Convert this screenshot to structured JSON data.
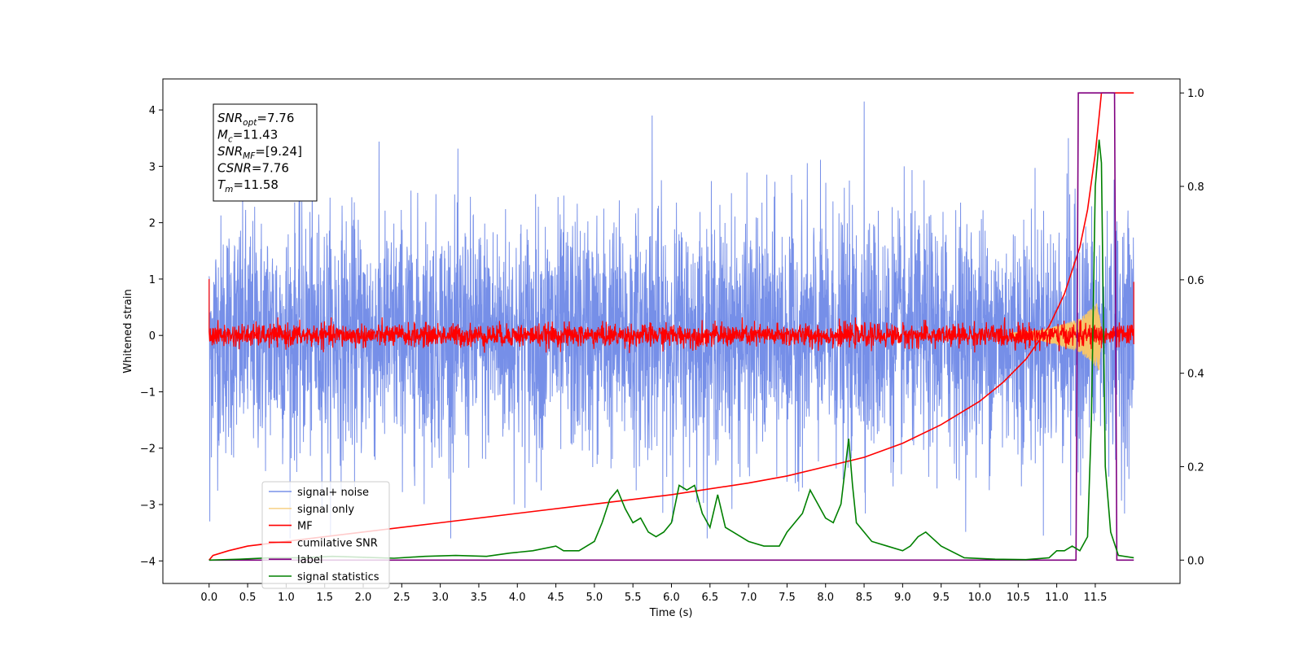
{
  "chart_data": {
    "type": "line",
    "xlabel": "Time (s)",
    "ylabel": "Whitened strain",
    "xlim": [
      -0.6,
      12.6
    ],
    "ylim": [
      -4.4,
      4.55
    ],
    "ylim_right": [
      -0.05,
      1.03
    ],
    "x_ticks": [
      0.0,
      0.5,
      1.0,
      1.5,
      2.0,
      2.5,
      3.0,
      3.5,
      4.0,
      4.5,
      5.0,
      5.5,
      6.0,
      6.5,
      7.0,
      7.5,
      8.0,
      8.5,
      9.0,
      9.5,
      10.0,
      10.5,
      11.0,
      11.5
    ],
    "x_tick_labels": [
      "0.0",
      "0.5",
      "1.0",
      "1.5",
      "2.0",
      "2.5",
      "3.0",
      "3.5",
      "4.0",
      "4.5",
      "5.0",
      "5.5",
      "6.0",
      "6.5",
      "7.0",
      "7.5",
      "8.0",
      "8.5",
      "9.0",
      "9.5",
      "10.0",
      "10.5",
      "11.0",
      "11.5"
    ],
    "y_ticks": [
      4,
      3,
      2,
      1,
      0,
      -1,
      -2,
      -3,
      -4
    ],
    "y_tick_labels": [
      "4",
      "3",
      "2",
      "1",
      "0",
      "−1",
      "−2",
      "−3",
      "−4"
    ],
    "y_ticks_right": [
      1.0,
      0.8,
      0.6,
      0.4,
      0.2,
      0.0
    ],
    "y_tick_labels_right": [
      "1.0",
      "0.8",
      "0.6",
      "0.4",
      "0.2",
      "0.0"
    ],
    "grid": false,
    "legend_position": "lower-left",
    "series": [
      {
        "name": "signal+ noise",
        "color": "#6a86e6",
        "axis": "left",
        "kind": "noise",
        "t_range": [
          0.0,
          12.0
        ],
        "amplitude_std": 1.05,
        "extremes": [
          [
            0.0,
            1.05
          ],
          [
            0.01,
            -3.3
          ],
          [
            5.75,
            3.9
          ],
          [
            8.5,
            4.15
          ],
          [
            11.15,
            3.5
          ],
          [
            11.18,
            -3.55
          ]
        ]
      },
      {
        "name": "signal only",
        "color": "#f5c56a",
        "axis": "left",
        "kind": "chirp",
        "t_range": [
          10.4,
          11.58
        ],
        "envelope": [
          [
            10.4,
            0.05
          ],
          [
            10.8,
            0.1
          ],
          [
            11.0,
            0.17
          ],
          [
            11.3,
            0.3
          ],
          [
            11.45,
            0.48
          ],
          [
            11.55,
            0.62
          ],
          [
            11.58,
            0.0
          ]
        ]
      },
      {
        "name": "MF",
        "color": "#ff0000",
        "axis": "left",
        "kind": "noise",
        "t_range": [
          0.0,
          12.0
        ],
        "amplitude_std": 0.1,
        "edges": [
          [
            0.0,
            1.0
          ],
          [
            12.0,
            0.95
          ]
        ]
      },
      {
        "name": "cumilative SNR",
        "color": "#ff0000",
        "axis": "right",
        "kind": "line",
        "x": [
          0.0,
          0.05,
          0.25,
          0.5,
          1.0,
          2.0,
          3.0,
          4.0,
          5.0,
          6.0,
          7.0,
          7.5,
          8.0,
          8.5,
          9.0,
          9.5,
          10.0,
          10.3,
          10.6,
          10.9,
          11.1,
          11.3,
          11.4,
          11.5,
          11.55,
          11.58,
          12.0
        ],
        "y": [
          0.0,
          0.01,
          0.02,
          0.03,
          0.04,
          0.06,
          0.08,
          0.1,
          0.12,
          0.14,
          0.165,
          0.18,
          0.2,
          0.22,
          0.25,
          0.29,
          0.34,
          0.38,
          0.43,
          0.5,
          0.57,
          0.67,
          0.75,
          0.87,
          0.95,
          1.0,
          1.0
        ]
      },
      {
        "name": "label",
        "color": "#800080",
        "axis": "right",
        "kind": "line",
        "x": [
          0.0,
          11.25,
          11.28,
          11.55,
          11.58,
          11.75,
          11.78,
          12.0
        ],
        "y": [
          0.0,
          0.0,
          1.0,
          1.0,
          1.0,
          1.0,
          0.0,
          0.0
        ]
      },
      {
        "name": "signal statistics",
        "color": "#008000",
        "axis": "right",
        "kind": "line",
        "x": [
          0.0,
          0.4,
          0.8,
          1.2,
          1.6,
          2.0,
          2.4,
          2.8,
          3.2,
          3.6,
          3.9,
          4.2,
          4.5,
          4.6,
          4.8,
          5.0,
          5.1,
          5.2,
          5.3,
          5.4,
          5.5,
          5.6,
          5.7,
          5.8,
          5.9,
          6.0,
          6.1,
          6.2,
          6.3,
          6.4,
          6.5,
          6.6,
          6.7,
          6.8,
          6.9,
          7.0,
          7.2,
          7.4,
          7.5,
          7.6,
          7.7,
          7.8,
          7.9,
          8.0,
          8.1,
          8.2,
          8.3,
          8.35,
          8.4,
          8.6,
          8.8,
          9.0,
          9.1,
          9.2,
          9.3,
          9.5,
          9.8,
          10.2,
          10.6,
          10.9,
          11.0,
          11.1,
          11.2,
          11.3,
          11.4,
          11.45,
          11.5,
          11.55,
          11.58,
          11.63,
          11.7,
          11.8,
          12.0
        ],
        "y": [
          0.0,
          0.002,
          0.005,
          0.005,
          0.008,
          0.006,
          0.004,
          0.008,
          0.01,
          0.008,
          0.015,
          0.02,
          0.03,
          0.02,
          0.02,
          0.04,
          0.08,
          0.13,
          0.15,
          0.11,
          0.08,
          0.09,
          0.06,
          0.05,
          0.06,
          0.08,
          0.16,
          0.15,
          0.16,
          0.1,
          0.07,
          0.14,
          0.07,
          0.06,
          0.05,
          0.04,
          0.03,
          0.03,
          0.06,
          0.08,
          0.1,
          0.15,
          0.12,
          0.09,
          0.08,
          0.12,
          0.26,
          0.16,
          0.08,
          0.04,
          0.03,
          0.02,
          0.03,
          0.05,
          0.06,
          0.03,
          0.005,
          0.002,
          0.001,
          0.005,
          0.02,
          0.02,
          0.03,
          0.02,
          0.05,
          0.3,
          0.8,
          0.9,
          0.85,
          0.2,
          0.06,
          0.01,
          0.005
        ]
      }
    ],
    "annotation_lines": [
      {
        "base": "SNR",
        "sub": "opt",
        "rest": "=7.76"
      },
      {
        "base": "M",
        "sub": "c",
        "rest": "=11.43"
      },
      {
        "base": "SNR",
        "sub": "MF",
        "rest": "=[9.24]"
      },
      {
        "base": "CSNR",
        "sub": "",
        "rest": "=7.76"
      },
      {
        "base": "T",
        "sub": "m",
        "rest": "=11.58"
      }
    ]
  }
}
